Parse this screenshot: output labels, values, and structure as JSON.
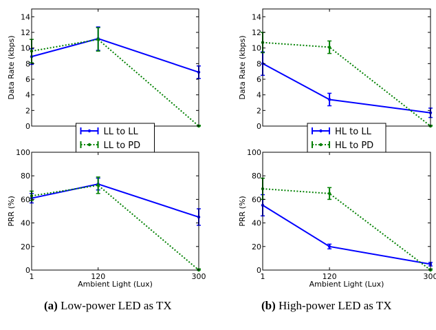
{
  "figure": {
    "captions": [
      {
        "tag": "(a)",
        "text": "Low-power LED as TX"
      },
      {
        "tag": "(b)",
        "text": "High-power LED as TX"
      }
    ]
  },
  "chart_data": [
    {
      "id": "a-top",
      "type": "line",
      "ylabel": "Data Rate (kbps)",
      "xlabel": "",
      "x": [
        1,
        120,
        300
      ],
      "x_ticklabels": [
        "1",
        "120",
        "300"
      ],
      "ylim": [
        0,
        15
      ],
      "yticks": [
        0,
        2,
        4,
        6,
        8,
        10,
        12,
        14
      ],
      "grid": false,
      "series": [
        {
          "name": "LL to LL",
          "color": "#0000ff",
          "style": "solid",
          "values": [
            8.9,
            11.2,
            6.9
          ],
          "errors": [
            1.0,
            1.5,
            0.8
          ]
        },
        {
          "name": "LL to PD",
          "color": "#008000",
          "style": "dotted",
          "values": [
            9.6,
            11.1,
            0.0
          ],
          "errors": [
            1.5,
            1.5,
            0.1
          ]
        }
      ]
    },
    {
      "id": "a-bottom",
      "type": "line",
      "ylabel": "PRR (%)",
      "xlabel": "Ambient Light (Lux)",
      "x": [
        1,
        120,
        300
      ],
      "x_ticklabels": [
        "1",
        "120",
        "300"
      ],
      "ylim": [
        0,
        100
      ],
      "yticks": [
        0,
        20,
        40,
        60,
        80,
        100
      ],
      "grid": false,
      "legend": "top-center",
      "series": [
        {
          "name": "LL to LL",
          "color": "#0000ff",
          "style": "solid",
          "values": [
            61,
            73,
            45
          ],
          "errors": [
            4,
            5,
            7
          ]
        },
        {
          "name": "LL to PD",
          "color": "#008000",
          "style": "dotted",
          "values": [
            63,
            72,
            0
          ],
          "errors": [
            4,
            7,
            1
          ]
        }
      ]
    },
    {
      "id": "b-top",
      "type": "line",
      "ylabel": "Data Rate (kbps)",
      "xlabel": "",
      "x": [
        1,
        120,
        300
      ],
      "x_ticklabels": [
        "1",
        "120",
        "300"
      ],
      "ylim": [
        0,
        15
      ],
      "yticks": [
        0,
        2,
        4,
        6,
        8,
        10,
        12,
        14
      ],
      "grid": false,
      "series": [
        {
          "name": "HL to LL",
          "color": "#0000ff",
          "style": "solid",
          "values": [
            8.0,
            3.4,
            1.7
          ],
          "errors": [
            1.5,
            0.8,
            0.6
          ]
        },
        {
          "name": "HL to PD",
          "color": "#008000",
          "style": "dotted",
          "values": [
            10.7,
            10.1,
            0.0
          ],
          "errors": [
            1.3,
            0.8,
            0.1
          ]
        }
      ]
    },
    {
      "id": "b-bottom",
      "type": "line",
      "ylabel": "PRR (%)",
      "xlabel": "Ambient Light (Lux)",
      "x": [
        1,
        120,
        300
      ],
      "x_ticklabels": [
        "1",
        "120",
        "300"
      ],
      "ylim": [
        0,
        100
      ],
      "yticks": [
        0,
        20,
        40,
        60,
        80,
        100
      ],
      "grid": false,
      "legend": "top-center",
      "series": [
        {
          "name": "HL to LL",
          "color": "#0000ff",
          "style": "solid",
          "values": [
            55,
            20,
            5
          ],
          "errors": [
            9,
            2,
            1.5
          ]
        },
        {
          "name": "HL to PD",
          "color": "#008000",
          "style": "dotted",
          "values": [
            69,
            65,
            0
          ],
          "errors": [
            9,
            5,
            1
          ]
        }
      ]
    }
  ]
}
